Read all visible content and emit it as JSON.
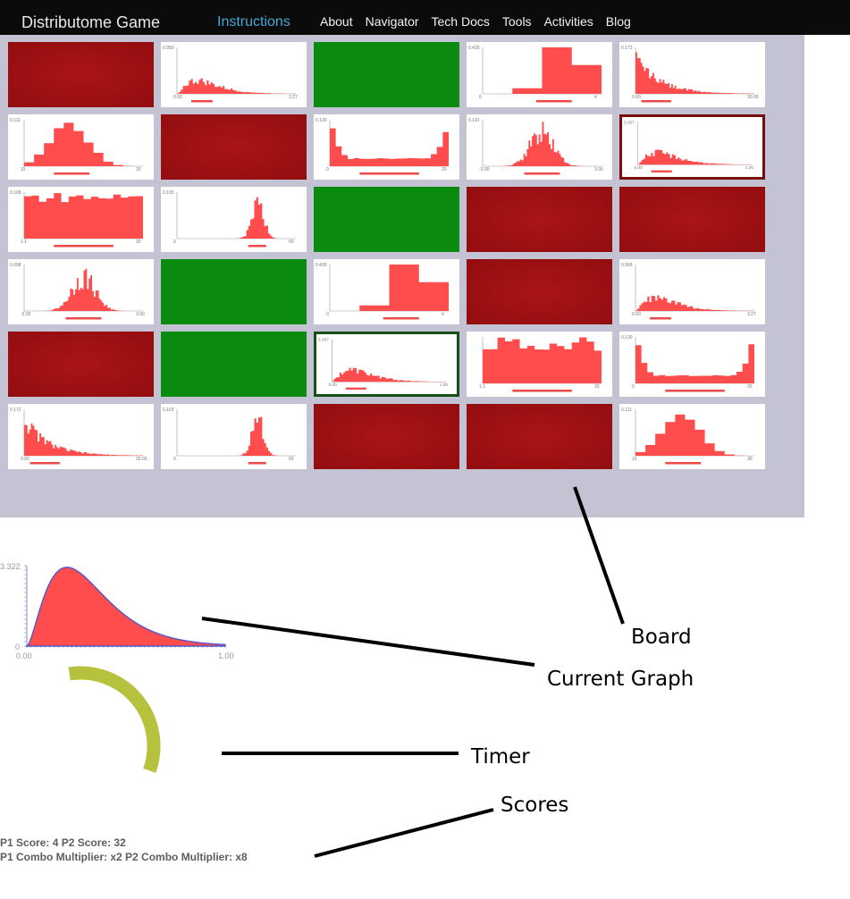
{
  "navbar": {
    "brand": "Distributome Game",
    "active": "Instructions",
    "links": [
      "About",
      "Navigator",
      "Tech Docs",
      "Tools",
      "Activities",
      "Blog"
    ]
  },
  "board": {
    "rows": [
      [
        {
          "state": "red"
        },
        {
          "state": "hist",
          "shape": "right-skew",
          "ylabel": "0.950",
          "xmin": "0.00",
          "xmax": "3.27"
        },
        {
          "state": "green"
        },
        {
          "state": "hist",
          "shape": "steps",
          "ylabel": "0.430",
          "xmin": "0",
          "xmax": "4"
        },
        {
          "state": "hist",
          "shape": "decay",
          "ylabel": "0.172",
          "xmin": "0.00",
          "xmax": "30.00"
        }
      ],
      [
        {
          "state": "hist",
          "shape": "bell-wide",
          "ylabel": "0.111",
          "xmin": "15",
          "xmax": "30"
        },
        {
          "state": "red"
        },
        {
          "state": "hist",
          "shape": "u-shape",
          "ylabel": "0.130",
          "xmin": "0",
          "xmax": "20"
        },
        {
          "state": "hist",
          "shape": "noisy-normal",
          "ylabel": "0.110",
          "xmin": "-3.00",
          "xmax": "3.00"
        },
        {
          "state": "hist",
          "shape": "right-skew",
          "ylabel": "3.307",
          "xmin": "0.00",
          "xmax": "1.00",
          "highlight": "red"
        }
      ],
      [
        {
          "state": "hist",
          "shape": "uniform",
          "ylabel": "0.108",
          "xmin": "1.1",
          "xmax": "20"
        },
        {
          "state": "hist",
          "shape": "right-normal",
          "ylabel": "0.105",
          "xmin": "0",
          "xmax": "60"
        },
        {
          "state": "green"
        },
        {
          "state": "red"
        },
        {
          "state": "red"
        }
      ],
      [
        {
          "state": "hist",
          "shape": "noisy-normal",
          "ylabel": "0.098",
          "xmin": "-3.00",
          "xmax": "3.00"
        },
        {
          "state": "green"
        },
        {
          "state": "hist",
          "shape": "steps",
          "ylabel": "0.430",
          "xmin": "0",
          "xmax": "4"
        },
        {
          "state": "red"
        },
        {
          "state": "hist",
          "shape": "right-skew",
          "ylabel": "0.968",
          "xmin": "0.00",
          "xmax": "3.27"
        }
      ],
      [
        {
          "state": "red"
        },
        {
          "state": "green"
        },
        {
          "state": "hist",
          "shape": "right-skew",
          "ylabel": "3.307",
          "xmin": "0.00",
          "xmax": "1.00",
          "highlight": "green"
        },
        {
          "state": "hist",
          "shape": "uniform-full",
          "ylabel": "",
          "xmin": "1.1",
          "xmax": "20"
        },
        {
          "state": "hist",
          "shape": "u-shape",
          "ylabel": "0.130",
          "xmin": "0",
          "xmax": "20"
        }
      ],
      [
        {
          "state": "hist",
          "shape": "decay",
          "ylabel": "0.172",
          "xmin": "0.00",
          "xmax": "30.00"
        },
        {
          "state": "hist",
          "shape": "right-normal",
          "ylabel": "0.103",
          "xmin": "0",
          "xmax": "60"
        },
        {
          "state": "red"
        },
        {
          "state": "red"
        },
        {
          "state": "hist",
          "shape": "bell-wide",
          "ylabel": "0.111",
          "xmin": "15",
          "xmax": "30"
        }
      ]
    ]
  },
  "current_graph": {
    "ymax_label": "3.322",
    "y0_label": "0",
    "xmin_label": "0.00",
    "xmax_label": "1.00",
    "fill_color": "#ff4c4c",
    "line_color": "#5555cc"
  },
  "timer": {
    "remaining_fraction": 0.4,
    "color": "#b6c23e"
  },
  "scores": {
    "line1": "P1 Score: 4 P2 Score: 32",
    "line2": "P1 Combo Multiplier: x2 P2 Combo Multiplier: x8"
  },
  "annotations": {
    "board": "Board",
    "current_graph": "Current Graph",
    "timer": "Timer",
    "scores": "Scores"
  }
}
